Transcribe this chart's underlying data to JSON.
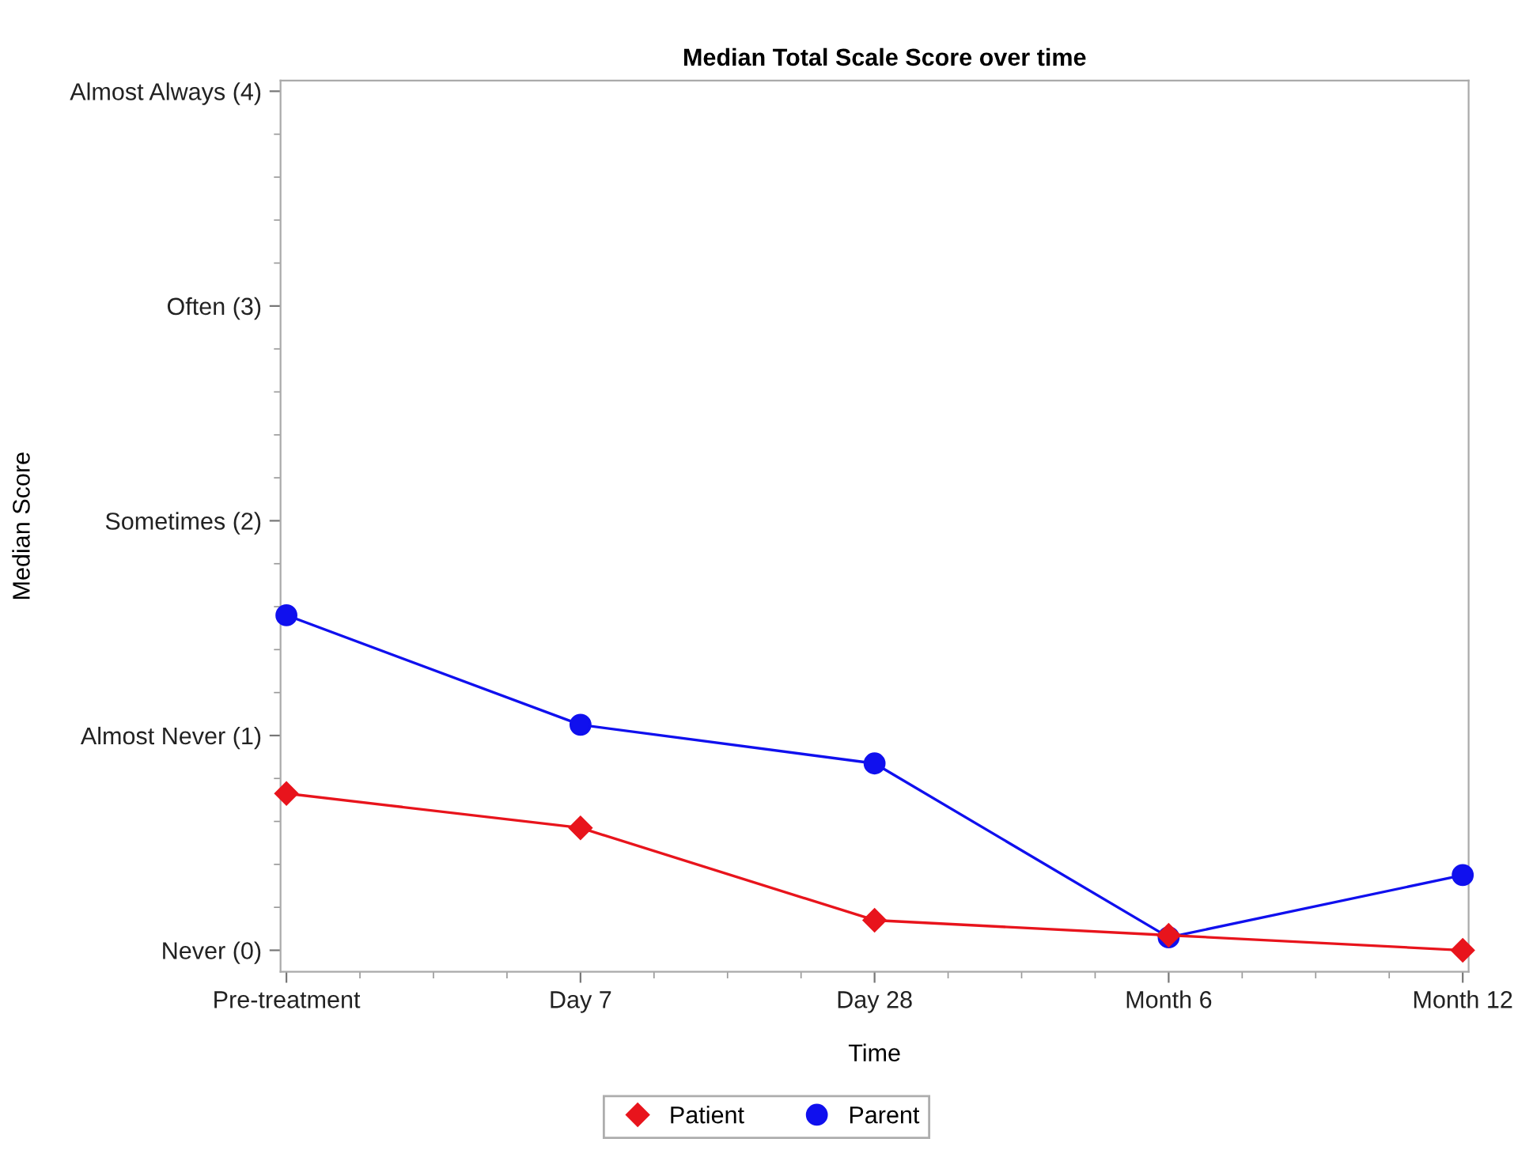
{
  "chart_data": {
    "type": "line",
    "subtitle": "Median Total Scale Score over time",
    "xlabel": "Time",
    "ylabel": "Median Score",
    "categories": [
      "Pre-treatment",
      "Day 7",
      "Day 28",
      "Month 6",
      "Month 12"
    ],
    "series": [
      {
        "name": "Patient",
        "color": "#e8141c",
        "marker": "diamond",
        "values": [
          0.73,
          0.57,
          0.14,
          0.07,
          0.0
        ]
      },
      {
        "name": "Parent",
        "color": "#1010ee",
        "marker": "circle",
        "values": [
          1.56,
          1.05,
          0.87,
          0.06,
          0.35
        ]
      }
    ],
    "ylim": [
      -0.1,
      4.05
    ],
    "yticks": [
      {
        "value": 0,
        "label": "Never (0)"
      },
      {
        "value": 1,
        "label": "Almost Never (1)"
      },
      {
        "value": 2,
        "label": "Sometimes (2)"
      },
      {
        "value": 3,
        "label": "Often (3)"
      },
      {
        "value": 4,
        "label": "Almost Always (4)"
      }
    ],
    "grid": false,
    "legend": "bottom",
    "line_style": "solid"
  }
}
